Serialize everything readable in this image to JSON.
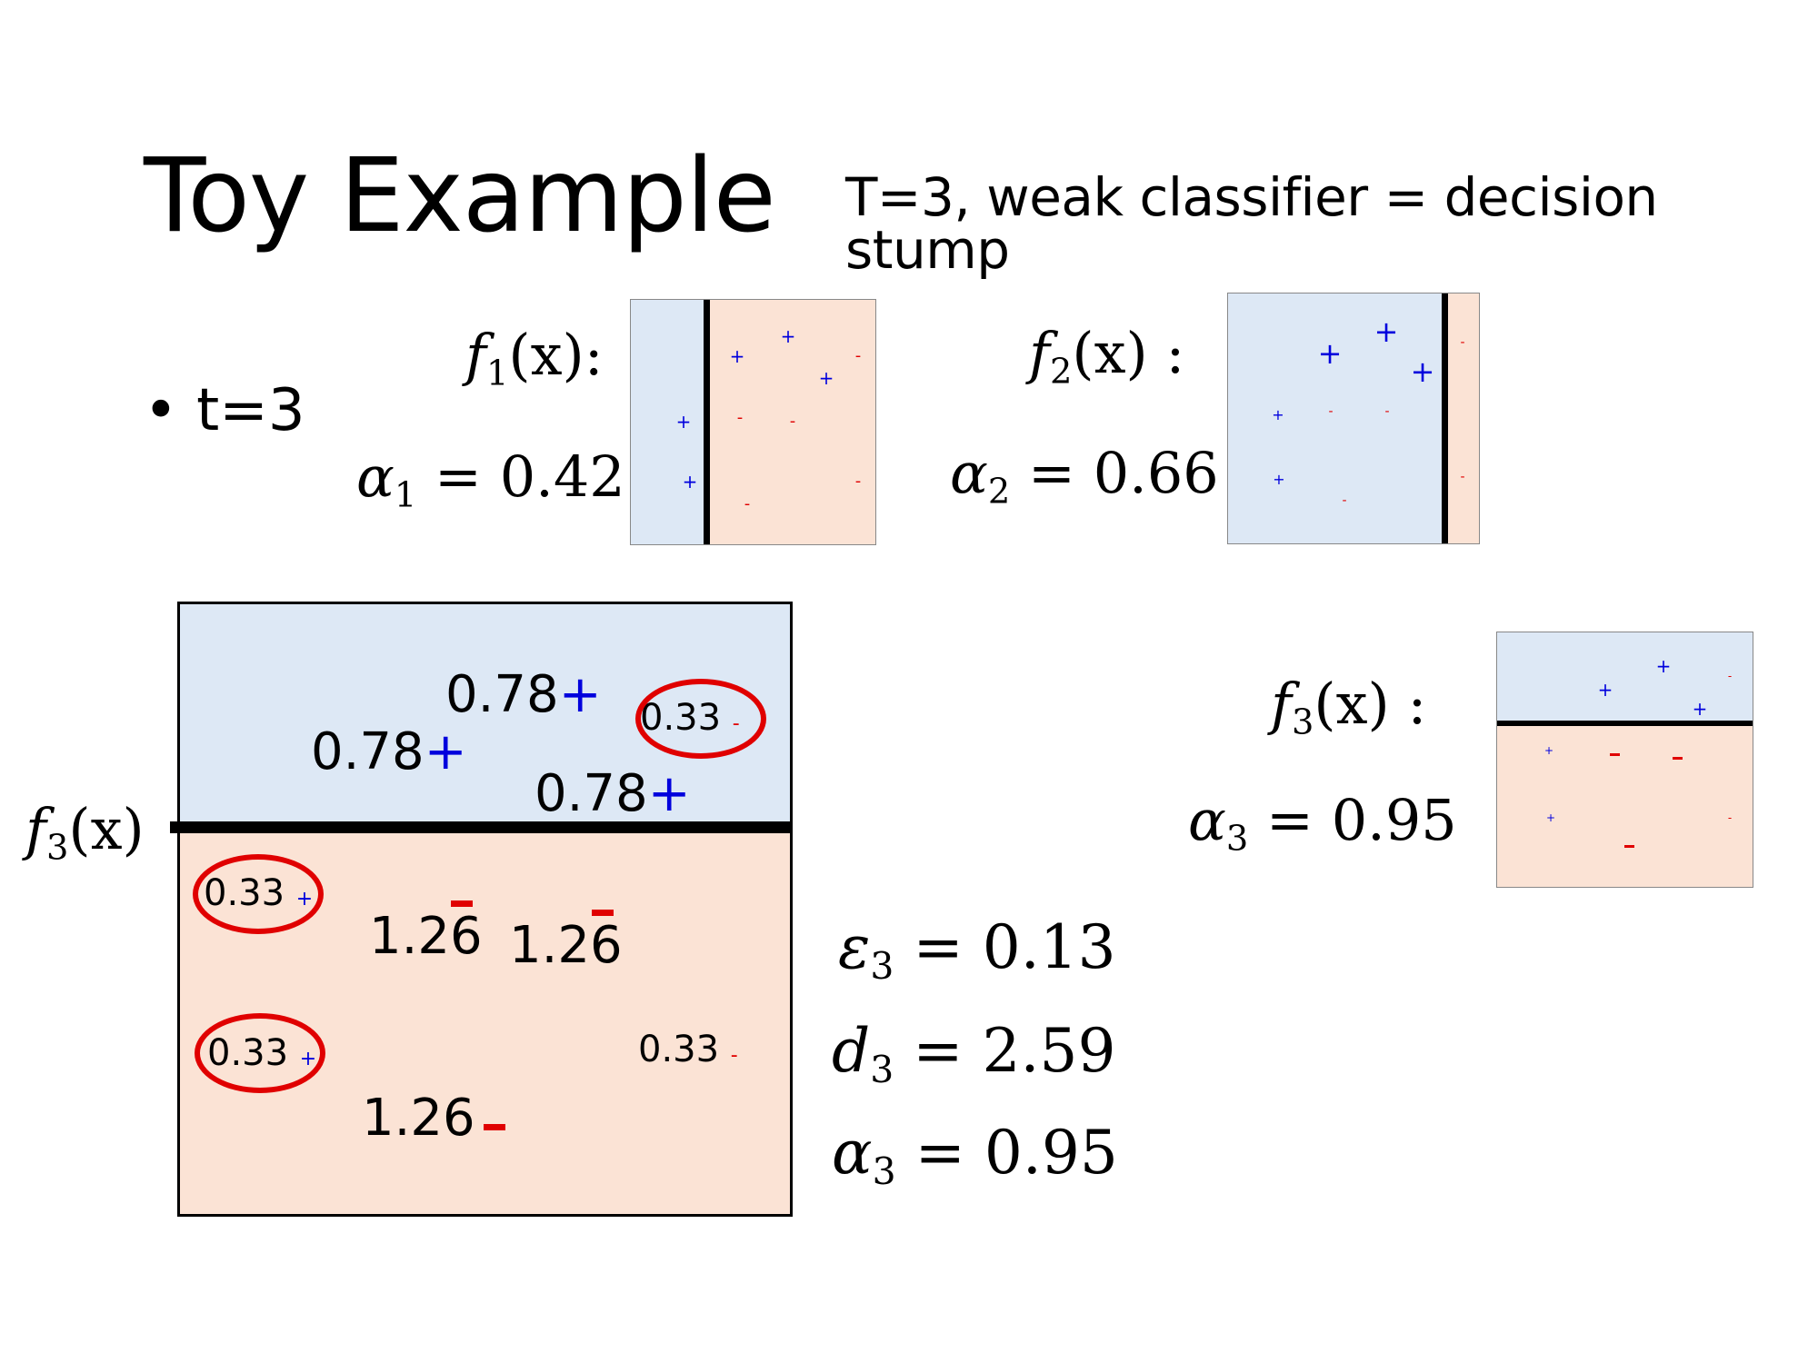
{
  "slide": {
    "title": "Toy Example",
    "subtitle": "T=3, weak classifier = decision stump",
    "bullet": "t=3"
  },
  "colors": {
    "positive_region": "#dde8f5",
    "negative_region": "#fbe3d5",
    "plus": "#0000dd",
    "minus": "#e00000",
    "ring": "#e00000"
  },
  "classifier1": {
    "f": "f",
    "sub": "1",
    "arg": "(x):",
    "alpha": "α",
    "alpha_sub": "1",
    "alpha_value": "= 0.42"
  },
  "classifier2": {
    "f": "f",
    "sub": "2",
    "arg": "(x) :",
    "alpha": "α",
    "alpha_sub": "2",
    "alpha_value": "= 0.66"
  },
  "classifier3": {
    "f": "f",
    "sub": "3",
    "arg": "(x) :",
    "alpha": "α",
    "alpha_sub": "3",
    "alpha_value": "= 0.95"
  },
  "stump_label": {
    "f": "f",
    "sub": "3",
    "arg": "(x)"
  },
  "results": {
    "epsilon": {
      "sym": "ε",
      "sub": "3",
      "value": "= 0.13"
    },
    "d": {
      "sym": "d",
      "sub": "3",
      "value": "= 2.59"
    },
    "alpha": {
      "sym": "α",
      "sub": "3",
      "value": "= 0.95"
    }
  },
  "signs": {
    "plus": "+",
    "minus": "-"
  },
  "weights": {
    "w1": "0.78",
    "w2": "0.78",
    "w3": "0.78",
    "w4": "0.33",
    "w5": "0.33",
    "w6": "0.33",
    "w7": "0.33",
    "w8": "1.26",
    "w9": "1.26",
    "w10": "1.26"
  }
}
